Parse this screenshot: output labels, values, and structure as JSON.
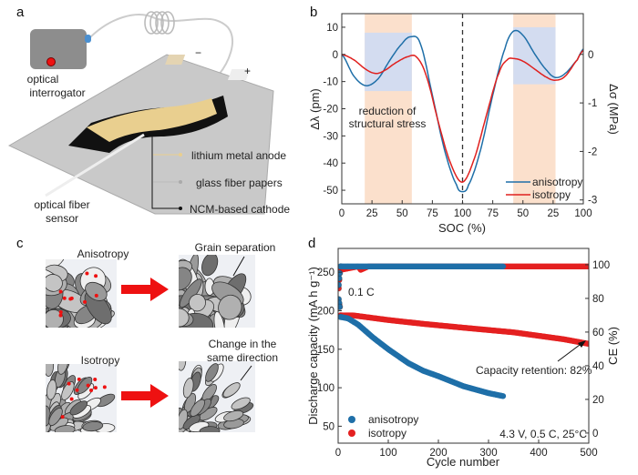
{
  "panel_labels": {
    "a": "a",
    "b": "b",
    "c": "c",
    "d": "d"
  },
  "panel_a": {
    "interrogator": [
      "optical",
      "interrogator"
    ],
    "sensor": [
      "optical fiber",
      "sensor"
    ],
    "minus": "−",
    "plus": "+",
    "layers": [
      "lithium metal anode",
      "glass fiber papers",
      "NCM-based cathode"
    ]
  },
  "panel_c": {
    "anisotropy": "Anisotropy",
    "isotropy": "Isotropy",
    "grain_separation": "Grain separation",
    "same_direction": [
      "Change in the",
      "same direction"
    ],
    "arrow_color": "#ee1111"
  },
  "chart_data": [
    {
      "type": "line",
      "xlabel": "SOC (%)",
      "ylabel": "Δλ (pm)",
      "y2label": "Δσ (MPa)",
      "x_tick_labels": [
        "0",
        "25",
        "50",
        "75",
        "100",
        "75",
        "50",
        "25",
        "100"
      ],
      "ylim": [
        -55,
        15
      ],
      "y_ticks": [
        10,
        0,
        -10,
        -20,
        -30,
        -40,
        -50
      ],
      "y2lim": [
        -3.08,
        0.84
      ],
      "y2_ticks": [
        0,
        -1,
        -2,
        -3
      ],
      "annotation": [
        "reduction of",
        "structural stress"
      ],
      "legend_position": "bottom-right",
      "vline_at": "100",
      "shaded_orange_color": "#fbe0cc",
      "shaded_blue_color": "#d3dcf0",
      "series": [
        {
          "name": "anisotropy",
          "color": "#1f6fa8",
          "x": [
            0,
            10,
            20,
            30,
            40,
            50,
            57,
            65,
            75,
            85,
            95,
            100,
            105,
            115,
            125,
            135,
            142,
            150,
            160,
            170,
            177,
            185,
            195,
            200
          ],
          "y": [
            0,
            -8,
            -11.5,
            -9,
            -2,
            4,
            6.5,
            4,
            -15,
            -35,
            -48,
            -50.5,
            -48,
            -35,
            -15,
            2,
            8.5,
            7,
            0,
            -6,
            -8.5,
            -7,
            -2,
            2
          ]
        },
        {
          "name": "isotropy",
          "color": "#e0201e",
          "x": [
            0,
            10,
            20,
            28,
            35,
            45,
            55,
            62,
            70,
            80,
            90,
            100,
            110,
            120,
            130,
            137,
            142,
            150,
            160,
            170,
            177,
            185,
            195,
            200
          ],
          "y": [
            0,
            -2,
            -5.5,
            -7,
            -6,
            -3,
            -0.8,
            -1,
            -8,
            -25,
            -40,
            -47,
            -38,
            -22,
            -7,
            -2,
            -1.5,
            -2.5,
            -5.5,
            -8.5,
            -9.5,
            -8,
            -2,
            1.5
          ]
        }
      ]
    },
    {
      "type": "scatter",
      "xlabel": "Cycle number",
      "ylabel": "Discharge capacity (mA h g⁻¹)",
      "y2label": "CE (%)",
      "xlim": [
        0,
        500
      ],
      "x_ticks": [
        0,
        100,
        200,
        300,
        400,
        500
      ],
      "ylim": [
        28,
        281
      ],
      "y_ticks": [
        50,
        100,
        150,
        200,
        250
      ],
      "y2lim": [
        -6,
        109.7
      ],
      "y2_ticks": [
        0,
        20,
        40,
        60,
        80,
        100
      ],
      "annotations": [
        "0.1 C",
        "Capacity retention: 82%",
        "4.3 V, 0.5 C, 25°C"
      ],
      "legend_position": "bottom-left",
      "series": [
        {
          "name": "anisotropy",
          "color": "#1f6fa8",
          "capacity": {
            "x": [
              1,
              2,
              3,
              5,
              20,
              40,
              70,
              100,
              140,
              170,
              200,
              250,
              300,
              330
            ],
            "y": [
              215,
              210,
              205,
              192,
              190,
              182,
              165,
              150,
              132,
              122,
              115,
              102,
              93,
              89
            ]
          },
          "ce": {
            "x": [
              1,
              2,
              3,
              5,
              330
            ],
            "y": [
              88,
              92,
              95,
              99,
              99
            ]
          }
        },
        {
          "name": "isotropy",
          "color": "#e42020",
          "capacity": {
            "x": [
              1,
              2,
              3,
              5,
              30,
              100,
              170,
              250,
              350,
              450,
              500
            ],
            "y": [
              210,
              208,
              205,
              194,
              194,
              188,
              183,
              178,
              172,
              163,
              157
            ]
          },
          "ce": {
            "x": [
              1,
              2,
              3,
              5,
              40,
              45,
              60,
              500
            ],
            "y": [
              86,
              91,
              95,
              97,
              99,
              97,
              99,
              99
            ]
          }
        }
      ]
    }
  ]
}
